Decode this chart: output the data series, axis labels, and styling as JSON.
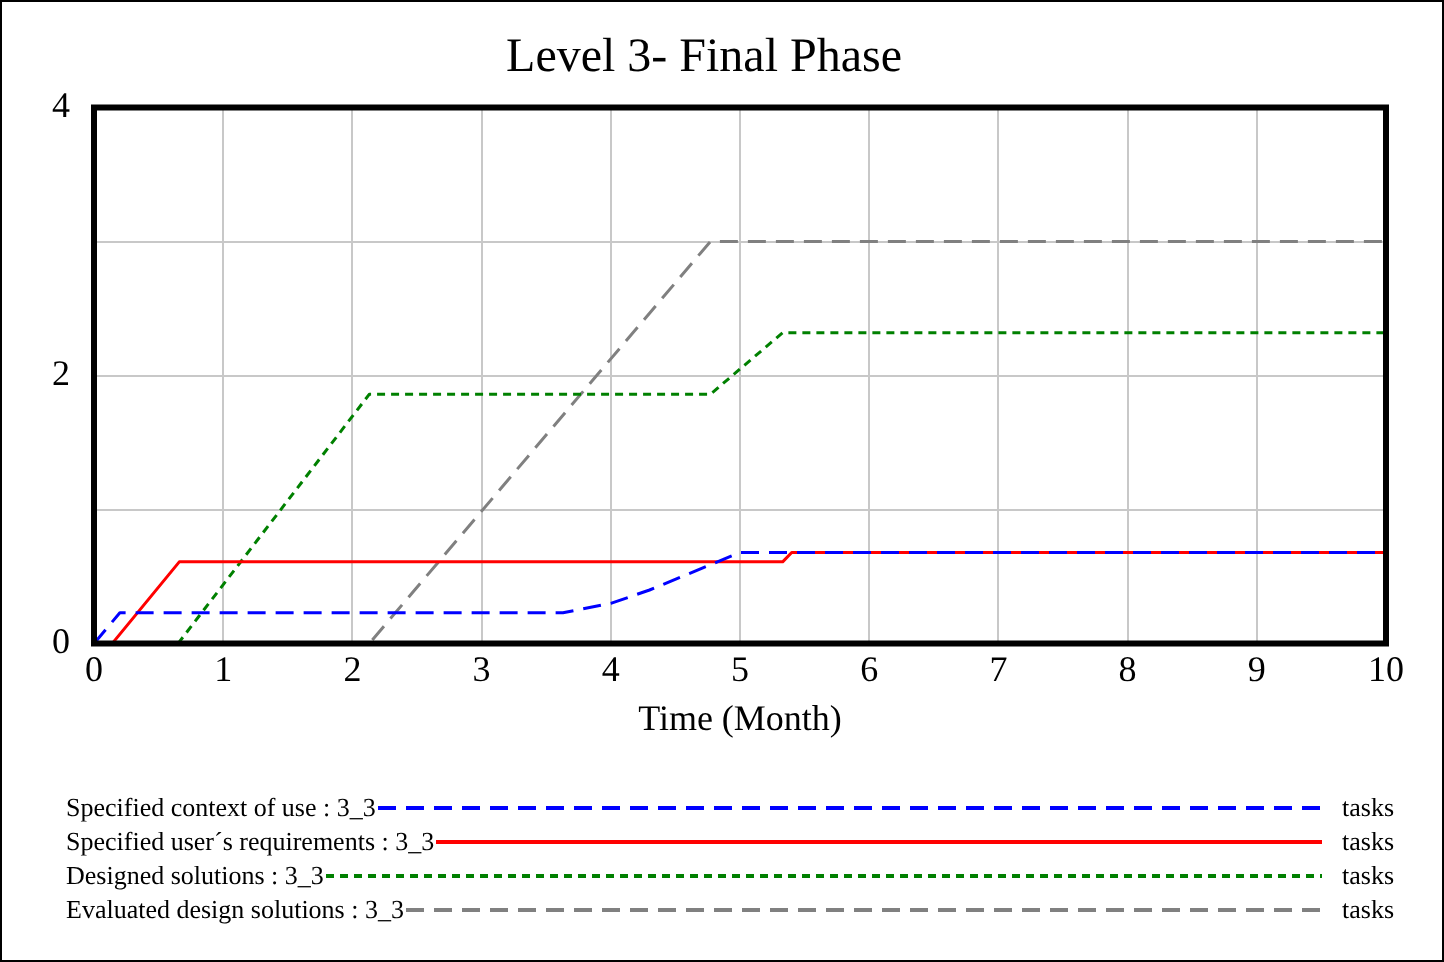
{
  "chart_data": {
    "type": "line",
    "title": "Level 3- Final Phase",
    "xlabel": "Time (Month)",
    "xlim": [
      0,
      10
    ],
    "xticks": [
      0,
      1,
      2,
      3,
      4,
      5,
      6,
      7,
      8,
      9,
      10
    ],
    "ylim": [
      0,
      4
    ],
    "yticks": [
      0,
      {
        "value": 1,
        "label": null
      },
      2,
      {
        "value": 3,
        "label": null
      },
      4
    ],
    "grid": true,
    "legend": "bottom",
    "marker": "none",
    "series": [
      {
        "name": "Specified context of use : 3_3",
        "color": "#0000ff",
        "line_style": "dashed",
        "x": [
          0,
          0.2,
          3.63,
          4.0,
          4.3,
          4.6,
          5.0,
          10
        ],
        "values": [
          0,
          0.23,
          0.23,
          0.3,
          0.4,
          0.52,
          0.68,
          0.68
        ]
      },
      {
        "name": "Specified user´s requirements : 3_3",
        "color": "#ff0000",
        "line_style": "solid",
        "x": [
          0,
          0.14,
          0.66,
          5.33,
          5.4,
          10
        ],
        "values": [
          0,
          0,
          0.61,
          0.61,
          0.68,
          0.68
        ]
      },
      {
        "name": "Designed solutions : 3_3",
        "color": "#008000",
        "line_style": "dotted",
        "x": [
          0,
          0.65,
          2.13,
          4.77,
          5.33,
          10
        ],
        "values": [
          0,
          0,
          1.86,
          1.86,
          2.32,
          2.32
        ]
      },
      {
        "name": "Evaluated design solutions : 3_3",
        "color": "#808080",
        "line_style": "dashed",
        "x": [
          0,
          2.13,
          4.77,
          10
        ],
        "values": [
          0,
          0,
          3,
          3
        ]
      }
    ],
    "annotations": [
      "tasks",
      "tasks",
      "tasks",
      "tasks"
    ]
  }
}
